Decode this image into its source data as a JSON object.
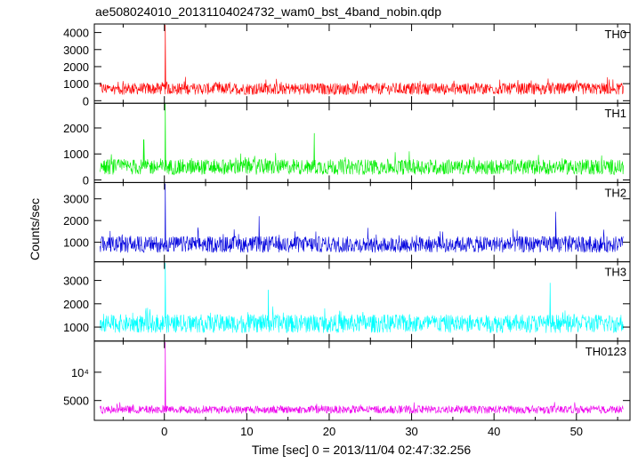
{
  "title": "ae508024010_20131104024732_wam0_bst_4band_nobin.qdp",
  "chart_data": {
    "type": "line",
    "title": "ae508024010_20131104024732_wam0_bst_4band_nobin.qdp",
    "xlabel": "Time [sec] 0 = 2013/11/04 02:47:32.256",
    "ylabel": "Counts/sec",
    "xlim": [
      -8.5,
      56.5
    ],
    "x_ticks": [
      0,
      10,
      20,
      30,
      40,
      50
    ],
    "x_tick_labels": [
      "0",
      "10",
      "20",
      "30",
      "40",
      "50"
    ],
    "grid": false,
    "panels": [
      {
        "name": "TH0",
        "color": "#ff0000",
        "ylim": [
          -150,
          4500
        ],
        "y_ticks": [
          0,
          1000,
          2000,
          3000,
          4000
        ],
        "y_tick_labels": [
          "0",
          "1000",
          "2000",
          "3000",
          "4000"
        ],
        "baseline": 700,
        "noise": 350,
        "peaks": [
          {
            "x": 0.1,
            "y": 4450
          }
        ]
      },
      {
        "name": "TH1",
        "color": "#00ee00",
        "ylim": [
          -100,
          2950
        ],
        "y_ticks": [
          0,
          1000,
          2000
        ],
        "y_tick_labels": [
          "0",
          "1000",
          "2000"
        ],
        "baseline": 500,
        "noise": 300,
        "peaks": [
          {
            "x": 0.1,
            "y": 2950
          },
          {
            "x": 18.2,
            "y": 1800
          },
          {
            "x": -2.5,
            "y": 1550
          }
        ]
      },
      {
        "name": "TH2",
        "color": "#0000dd",
        "ylim": [
          100,
          3750
        ],
        "y_ticks": [
          1000,
          2000,
          3000
        ],
        "y_tick_labels": [
          "1000",
          "2000",
          "3000"
        ],
        "baseline": 900,
        "noise": 380,
        "peaks": [
          {
            "x": 0.1,
            "y": 3700
          },
          {
            "x": 47.5,
            "y": 2400
          },
          {
            "x": 11.5,
            "y": 2200
          }
        ]
      },
      {
        "name": "TH3",
        "color": "#00ffff",
        "ylim": [
          400,
          3800
        ],
        "y_ticks": [
          1000,
          2000,
          3000
        ],
        "y_tick_labels": [
          "1000",
          "2000",
          "3000"
        ],
        "baseline": 1150,
        "noise": 400,
        "peaks": [
          {
            "x": 0.1,
            "y": 3750
          },
          {
            "x": 46.8,
            "y": 2900
          },
          {
            "x": 12.6,
            "y": 2600
          }
        ]
      },
      {
        "name": "TH0123",
        "color": "#ee00ee",
        "ylim": [
          1500,
          15500
        ],
        "y_ticks": [
          5000,
          10000
        ],
        "y_tick_labels": [
          "5000",
          "10⁴"
        ],
        "baseline": 3400,
        "noise": 700,
        "peaks": [
          {
            "x": 0.1,
            "y": 15300
          }
        ]
      }
    ]
  }
}
